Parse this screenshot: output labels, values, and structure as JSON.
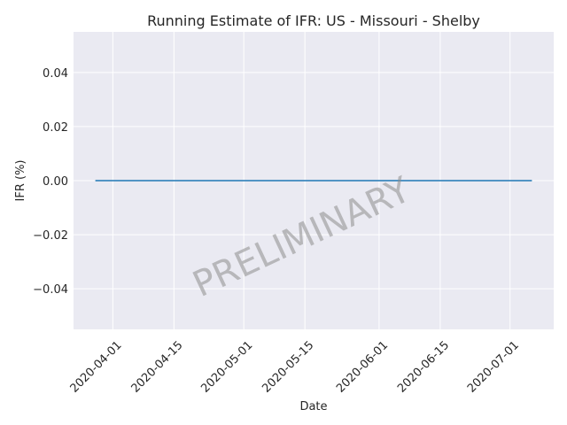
{
  "chart_data": {
    "type": "line",
    "title": "Running Estimate of IFR: US - Missouri - Shelby",
    "xlabel": "Date",
    "ylabel": "IFR (%)",
    "x_start": "2020-03-28",
    "x_end": "2020-07-06",
    "xlim": [
      "2020-03-23",
      "2020-07-11"
    ],
    "ylim": [
      -0.055,
      0.055
    ],
    "x_ticks": [
      "2020-04-01",
      "2020-04-15",
      "2020-05-01",
      "2020-05-15",
      "2020-06-01",
      "2020-06-15",
      "2020-07-01"
    ],
    "y_ticks": [
      -0.04,
      -0.02,
      0.0,
      0.02,
      0.04
    ],
    "y_tick_labels": [
      "−0.04",
      "−0.02",
      "0.00",
      "0.02",
      "0.04"
    ],
    "series": [
      {
        "color": "#1f77b4",
        "x": [
          "2020-03-28",
          "2020-07-06"
        ],
        "y": [
          0.0,
          0.0
        ]
      }
    ],
    "grid": true,
    "background": "#eaeaf2",
    "grid_color": "#ffffff",
    "watermark": "PRELIMINARY"
  }
}
